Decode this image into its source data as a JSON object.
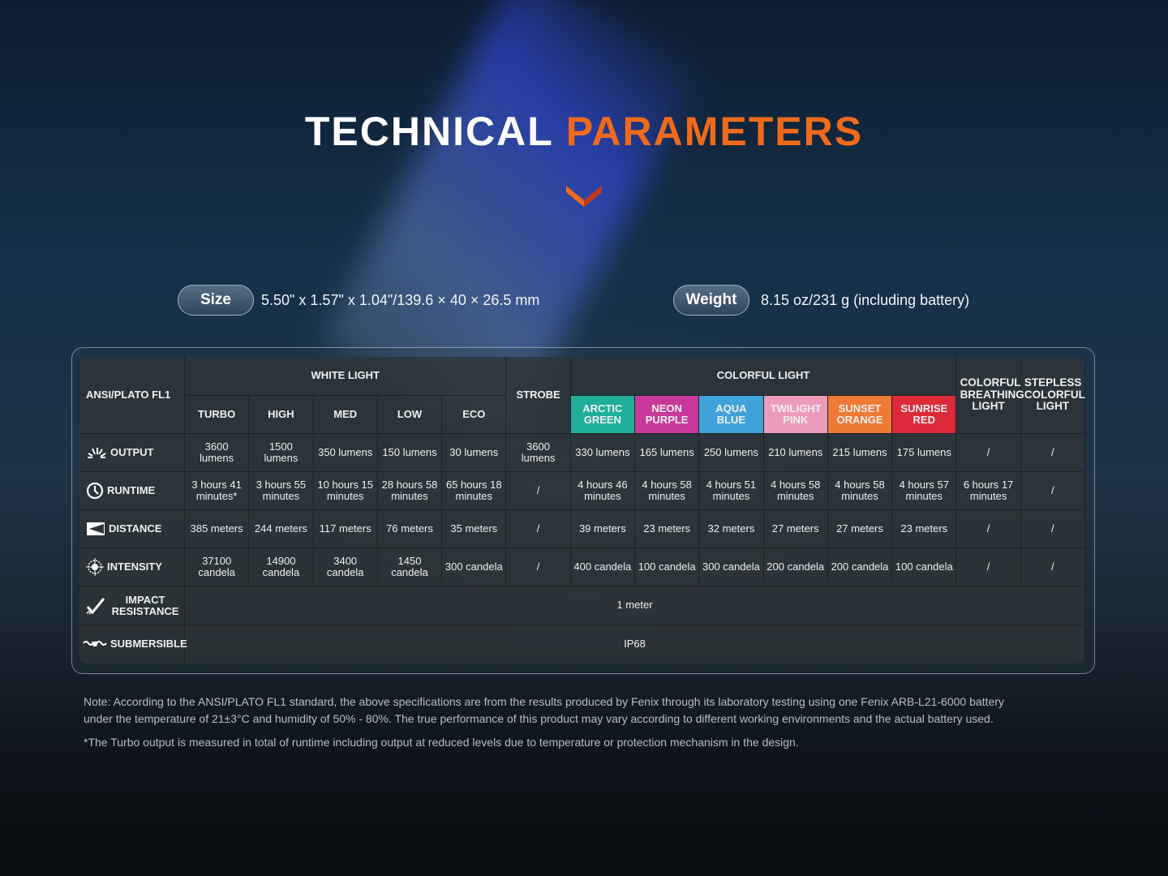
{
  "title": {
    "part1": "TECHNICAL",
    "part2": "PARAMETERS"
  },
  "colors": {
    "accent": "#f06a1c"
  },
  "size": {
    "label": "Size",
    "value": "5.50\" x 1.57\" x 1.04\"/139.6 × 40 × 26.5 mm"
  },
  "weight": {
    "label": "Weight",
    "value": "8.15 oz/231 g (including battery)"
  },
  "table": {
    "corner": "ANSI/PLATO FL1",
    "white_light": "WHITE LIGHT",
    "strobe": "STROBE",
    "colorful_light": "COLORFUL LIGHT",
    "breathing": "COLORFUL BREATHING LIGHT",
    "stepless": "STEPLESS COLORFUL LIGHT",
    "white_modes": [
      "TURBO",
      "HIGH",
      "MED",
      "LOW",
      "ECO"
    ],
    "color_modes": [
      {
        "label": "ARCTIC GREEN",
        "color": "#1fb09a"
      },
      {
        "label": "NEON PURPLE",
        "color": "#c8399a"
      },
      {
        "label": "AQUA BLUE",
        "color": "#3fa2d8"
      },
      {
        "label": "TWILIGHT PINK",
        "color": "#ec9bbb"
      },
      {
        "label": "SUNSET ORANGE",
        "color": "#ee7a35"
      },
      {
        "label": "SUNRISE RED",
        "color": "#dc2a3a"
      }
    ],
    "rows": [
      {
        "label": "OUTPUT",
        "icon": "output-icon",
        "cells": [
          "3600 lumens",
          "1500 lumens",
          "350 lumens",
          "150 lumens",
          "30 lumens",
          "3600 lumens",
          "330 lumens",
          "165 lumens",
          "250 lumens",
          "210 lumens",
          "215 lumens",
          "175 lumens",
          "/",
          "/"
        ]
      },
      {
        "label": "RUNTIME",
        "icon": "clock-icon",
        "cells": [
          "3 hours 41 minutes*",
          "3 hours 55 minutes",
          "10 hours 15 minutes",
          "28 hours 58 minutes",
          "65 hours 18 minutes",
          "/",
          "4 hours 46 minutes",
          "4 hours 58 minutes",
          "4 hours 51 minutes",
          "4 hours 58 minutes",
          "4 hours 58 minutes",
          "4 hours 57 minutes",
          "6 hours 17 minutes",
          "/"
        ]
      },
      {
        "label": "DISTANCE",
        "icon": "distance-icon",
        "cells": [
          "385 meters",
          "244 meters",
          "117 meters",
          "76 meters",
          "35 meters",
          "/",
          "39 meters",
          "23 meters",
          "32 meters",
          "27 meters",
          "27 meters",
          "23 meters",
          "/",
          "/"
        ]
      },
      {
        "label": "INTENSITY",
        "icon": "intensity-icon",
        "cells": [
          "37100 candela",
          "14900 candela",
          "3400 candela",
          "1450 candela",
          "300 candela",
          "/",
          "400 candela",
          "100 candela",
          "300 candela",
          "200 candela",
          "200 candela",
          "100 candela",
          "/",
          "/"
        ]
      }
    ],
    "impact": {
      "label": "IMPACT RESISTANCE",
      "value": "1 meter"
    },
    "submersible": {
      "label": "SUBMERSIBLE",
      "value": "IP68"
    }
  },
  "notes": {
    "line1": "Note: According to the ANSI/PLATO FL1 standard, the above specifications are from the results produced by Fenix through its laboratory testing using one Fenix ARB-L21-6000 battery",
    "line2": "under the temperature of 21±3°C and humidity of 50% - 80%. The true performance of this product may vary according to different working environments and the actual battery used.",
    "line3": "*The Turbo output is measured in total of runtime including output at reduced levels due to temperature or protection mechanism in the design."
  }
}
